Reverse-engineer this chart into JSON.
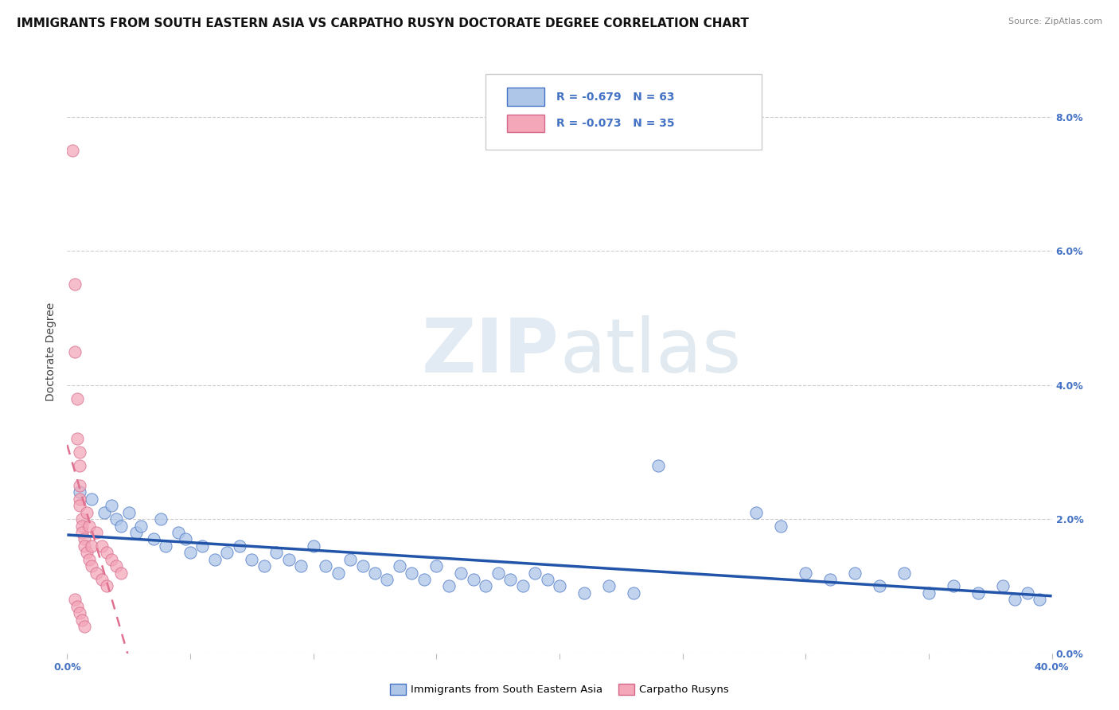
{
  "title": "IMMIGRANTS FROM SOUTH EASTERN ASIA VS CARPATHO RUSYN DOCTORATE DEGREE CORRELATION CHART",
  "source": "Source: ZipAtlas.com",
  "ylabel": "Doctorate Degree",
  "legend_blue_r": "R = -0.679",
  "legend_blue_n": "N = 63",
  "legend_pink_r": "R = -0.073",
  "legend_pink_n": "N = 35",
  "legend_blue_label": "Immigrants from South Eastern Asia",
  "legend_pink_label": "Carpatho Rusyns",
  "blue_fill": "#aec6e8",
  "blue_edge": "#4472c4",
  "pink_fill": "#f4a7b9",
  "pink_edge": "#d4688a",
  "blue_line_color": "#2255aa",
  "pink_line_color": "#e07090",
  "blue_scatter": [
    [
      0.005,
      0.024
    ],
    [
      0.01,
      0.023
    ],
    [
      0.015,
      0.021
    ],
    [
      0.018,
      0.022
    ],
    [
      0.02,
      0.02
    ],
    [
      0.022,
      0.019
    ],
    [
      0.025,
      0.021
    ],
    [
      0.028,
      0.018
    ],
    [
      0.03,
      0.019
    ],
    [
      0.035,
      0.017
    ],
    [
      0.038,
      0.02
    ],
    [
      0.04,
      0.016
    ],
    [
      0.045,
      0.018
    ],
    [
      0.048,
      0.017
    ],
    [
      0.05,
      0.015
    ],
    [
      0.055,
      0.016
    ],
    [
      0.06,
      0.014
    ],
    [
      0.065,
      0.015
    ],
    [
      0.07,
      0.016
    ],
    [
      0.075,
      0.014
    ],
    [
      0.08,
      0.013
    ],
    [
      0.085,
      0.015
    ],
    [
      0.09,
      0.014
    ],
    [
      0.095,
      0.013
    ],
    [
      0.1,
      0.016
    ],
    [
      0.105,
      0.013
    ],
    [
      0.11,
      0.012
    ],
    [
      0.115,
      0.014
    ],
    [
      0.12,
      0.013
    ],
    [
      0.125,
      0.012
    ],
    [
      0.13,
      0.011
    ],
    [
      0.135,
      0.013
    ],
    [
      0.14,
      0.012
    ],
    [
      0.145,
      0.011
    ],
    [
      0.15,
      0.013
    ],
    [
      0.155,
      0.01
    ],
    [
      0.16,
      0.012
    ],
    [
      0.165,
      0.011
    ],
    [
      0.17,
      0.01
    ],
    [
      0.175,
      0.012
    ],
    [
      0.18,
      0.011
    ],
    [
      0.185,
      0.01
    ],
    [
      0.19,
      0.012
    ],
    [
      0.195,
      0.011
    ],
    [
      0.2,
      0.01
    ],
    [
      0.21,
      0.009
    ],
    [
      0.22,
      0.01
    ],
    [
      0.23,
      0.009
    ],
    [
      0.24,
      0.028
    ],
    [
      0.28,
      0.021
    ],
    [
      0.29,
      0.019
    ],
    [
      0.3,
      0.012
    ],
    [
      0.31,
      0.011
    ],
    [
      0.32,
      0.012
    ],
    [
      0.33,
      0.01
    ],
    [
      0.34,
      0.012
    ],
    [
      0.35,
      0.009
    ],
    [
      0.36,
      0.01
    ],
    [
      0.37,
      0.009
    ],
    [
      0.38,
      0.01
    ],
    [
      0.385,
      0.008
    ],
    [
      0.39,
      0.009
    ],
    [
      0.395,
      0.008
    ]
  ],
  "pink_scatter": [
    [
      0.002,
      0.075
    ],
    [
      0.003,
      0.055
    ],
    [
      0.003,
      0.045
    ],
    [
      0.004,
      0.038
    ],
    [
      0.004,
      0.032
    ],
    [
      0.005,
      0.03
    ],
    [
      0.005,
      0.028
    ],
    [
      0.005,
      0.025
    ],
    [
      0.005,
      0.023
    ],
    [
      0.005,
      0.022
    ],
    [
      0.006,
      0.02
    ],
    [
      0.006,
      0.019
    ],
    [
      0.006,
      0.018
    ],
    [
      0.007,
      0.017
    ],
    [
      0.007,
      0.016
    ],
    [
      0.008,
      0.021
    ],
    [
      0.008,
      0.015
    ],
    [
      0.009,
      0.019
    ],
    [
      0.009,
      0.014
    ],
    [
      0.01,
      0.016
    ],
    [
      0.01,
      0.013
    ],
    [
      0.012,
      0.018
    ],
    [
      0.012,
      0.012
    ],
    [
      0.014,
      0.016
    ],
    [
      0.014,
      0.011
    ],
    [
      0.016,
      0.015
    ],
    [
      0.016,
      0.01
    ],
    [
      0.018,
      0.014
    ],
    [
      0.02,
      0.013
    ],
    [
      0.022,
      0.012
    ],
    [
      0.003,
      0.008
    ],
    [
      0.004,
      0.007
    ],
    [
      0.005,
      0.006
    ],
    [
      0.006,
      0.005
    ],
    [
      0.007,
      0.004
    ]
  ],
  "xlim": [
    0.0,
    0.4
  ],
  "ylim": [
    0.0,
    0.09
  ],
  "right_yticks": [
    0.0,
    0.02,
    0.04,
    0.06,
    0.08
  ],
  "background_color": "#ffffff",
  "grid_color": "#cccccc",
  "title_fontsize": 11,
  "source_fontsize": 8,
  "tick_fontsize": 9,
  "ylabel_fontsize": 10,
  "legend_fontsize": 10,
  "watermark_text": "ZIPatlas",
  "watermark_zip_color": "#c8d8e8",
  "watermark_atlas_color": "#b8c8d8"
}
